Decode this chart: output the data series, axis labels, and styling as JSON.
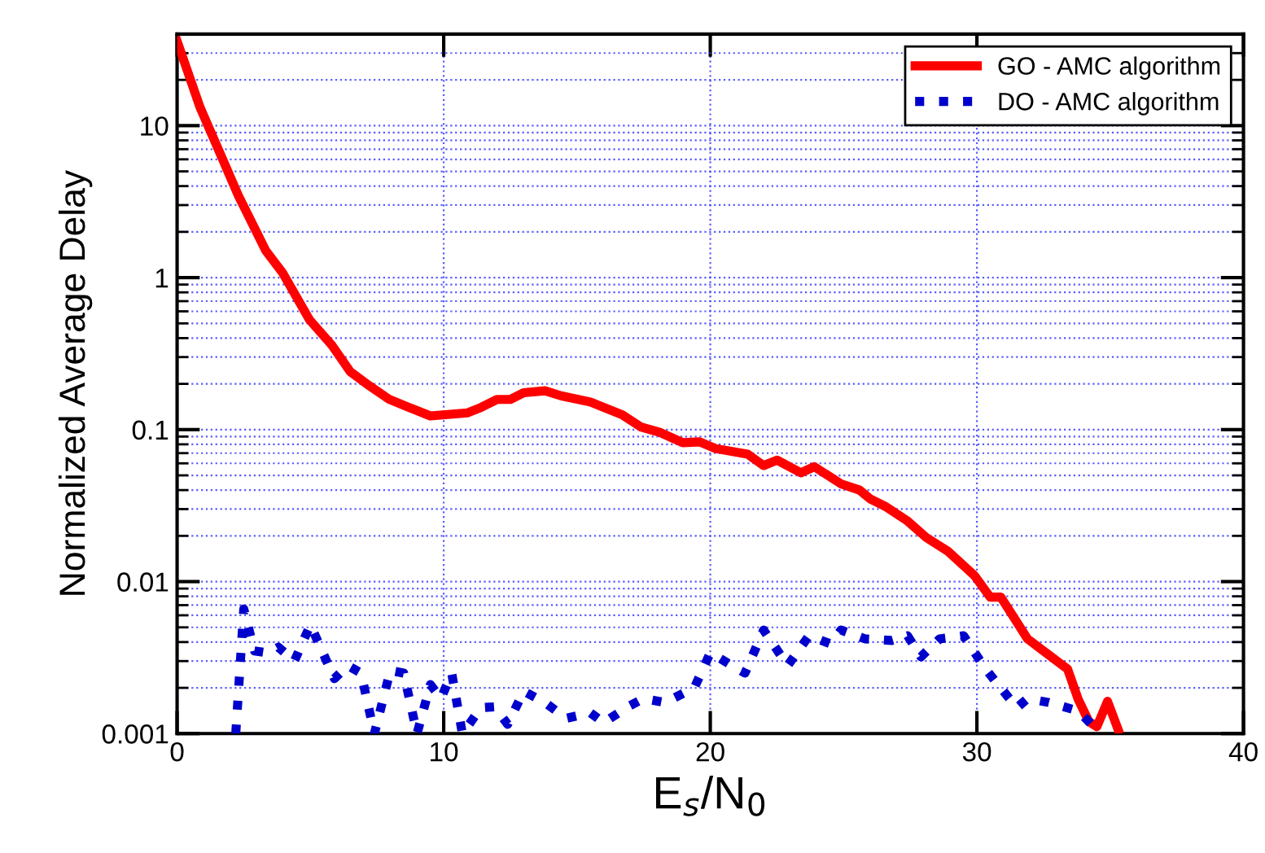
{
  "chart_data": {
    "type": "line",
    "xlabel": "E$_{s}$/N$_{0}$",
    "ylabel": "Normalized Average Delay",
    "log": "y",
    "xlim": [
      0,
      40
    ],
    "xticks": [
      0,
      10,
      20,
      30,
      40
    ],
    "ylim": [
      0.001,
      40
    ],
    "yticks": [
      {
        "value": 0.001,
        "label": "0.001"
      },
      {
        "value": 0.01,
        "label": "0.01"
      },
      {
        "value": 0.1,
        "label": "0.1"
      },
      {
        "value": 1,
        "label": "1"
      },
      {
        "value": 10,
        "label": "10"
      }
    ],
    "grid": true,
    "legend": "top right",
    "series": [
      {
        "name": "GO - AMC algorithm",
        "color": "#ff0000",
        "line_style": "solid",
        "x": [
          0,
          0.86,
          1.59,
          2.3,
          3.33,
          3.95,
          4.96,
          5.8,
          6.5,
          7.2,
          7.96,
          8.7,
          9.5,
          10.9,
          11.4,
          12,
          12.5,
          13,
          13.8,
          14.4,
          15.5,
          16.7,
          17.4,
          18.1,
          18.97,
          19.6,
          20.2,
          21.4,
          22,
          22.5,
          23.4,
          23.9,
          24.9,
          25.6,
          26,
          26.6,
          27.4,
          28.1,
          28.9,
          29.9,
          30.5,
          30.9,
          31.9,
          33.4,
          33.8,
          34.2,
          34.5,
          34.9,
          35.3
        ],
        "values": [
          36,
          13.2,
          6.7,
          3.46,
          1.5,
          1.08,
          0.53,
          0.36,
          0.24,
          0.195,
          0.158,
          0.14,
          0.123,
          0.129,
          0.14,
          0.158,
          0.158,
          0.175,
          0.18,
          0.167,
          0.152,
          0.125,
          0.104,
          0.096,
          0.082,
          0.083,
          0.075,
          0.069,
          0.058,
          0.063,
          0.052,
          0.057,
          0.044,
          0.04,
          0.035,
          0.031,
          0.025,
          0.0195,
          0.0159,
          0.011,
          0.0079,
          0.0079,
          0.0042,
          0.00266,
          0.00168,
          0.0012,
          0.00111,
          0.00163,
          0.00106
        ]
      },
      {
        "name": "DO - AMC algorithm",
        "color": "#0000cc",
        "line_style": "dotted",
        "x": [
          2.2,
          2.5,
          2.9,
          3.4,
          3.8,
          4.4,
          5.0,
          5.9,
          6.4,
          6.9,
          7.4,
          8.0,
          8.5,
          9.0,
          9.5,
          9.9,
          10.3,
          10.7,
          11.4,
          11.9,
          12.4,
          13.0,
          13.8,
          14.6,
          15.5,
          16.0,
          16.9,
          17.5,
          18.3,
          19.4,
          20.0,
          21.3,
          22.0,
          22.9,
          23.7,
          24.5,
          24.9,
          25.8,
          26.8,
          27.4,
          27.9,
          28.6,
          29.5,
          30.3,
          30.7,
          31.5,
          31.9,
          32.7,
          33.8,
          34.3
        ],
        "values": [
          0.001,
          0.0066,
          0.0035,
          0.0034,
          0.0037,
          0.003,
          0.0052,
          0.0023,
          0.0028,
          0.0025,
          0.001,
          0.0026,
          0.0025,
          0.001,
          0.0021,
          0.0017,
          0.0025,
          0.001,
          0.00148,
          0.0015,
          0.00115,
          0.0019,
          0.0016,
          0.00126,
          0.00137,
          0.00118,
          0.0015,
          0.0017,
          0.0016,
          0.002,
          0.0034,
          0.0025,
          0.0048,
          0.0028,
          0.0044,
          0.0039,
          0.0048,
          0.0042,
          0.0041,
          0.0044,
          0.0032,
          0.0042,
          0.0044,
          0.0027,
          0.0022,
          0.00148,
          0.0017,
          0.0016,
          0.00141,
          0.00115
        ]
      }
    ]
  }
}
